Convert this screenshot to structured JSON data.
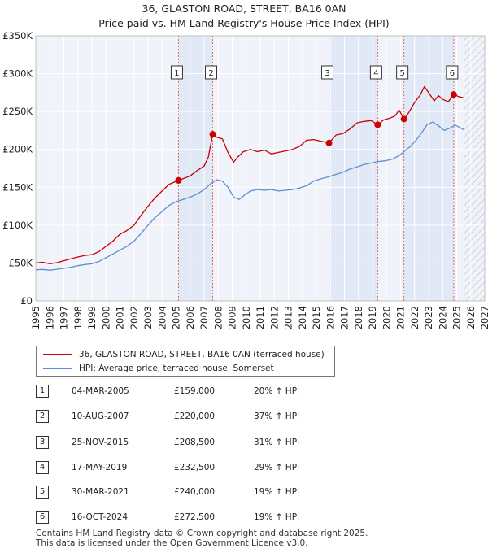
{
  "chart_data": {
    "type": "line",
    "title": "36, GLASTON ROAD, STREET, BA16 0AN",
    "subtitle": "Price paid vs. HM Land Registry's House Price Index (HPI)",
    "xlim": [
      1995,
      2027
    ],
    "ylim": [
      0,
      350000
    ],
    "x_ticks": [
      1995,
      1996,
      1997,
      1998,
      1999,
      2000,
      2001,
      2002,
      2003,
      2004,
      2005,
      2006,
      2007,
      2008,
      2009,
      2010,
      2011,
      2012,
      2013,
      2014,
      2015,
      2016,
      2017,
      2018,
      2019,
      2020,
      2021,
      2022,
      2023,
      2024,
      2025,
      2026,
      2027
    ],
    "y_ticks": [
      {
        "value": 0,
        "label": "£0"
      },
      {
        "value": 50000,
        "label": "£50K"
      },
      {
        "value": 100000,
        "label": "£100K"
      },
      {
        "value": 150000,
        "label": "£150K"
      },
      {
        "value": 200000,
        "label": "£200K"
      },
      {
        "value": 250000,
        "label": "£250K"
      },
      {
        "value": 300000,
        "label": "£300K"
      },
      {
        "value": 350000,
        "label": "£350K"
      }
    ],
    "grid": true,
    "future_shading_from": 2025.5,
    "series": [
      {
        "name": "36, GLASTON ROAD, STREET, BA16 0AN (terraced house)",
        "color": "#cc0000",
        "x": [
          1995,
          1995.5,
          1996,
          1996.5,
          1997,
          1997.5,
          1998,
          1998.5,
          1999,
          1999.5,
          2000,
          2000.5,
          2001,
          2001.5,
          2002,
          2002.5,
          2003,
          2003.5,
          2004,
          2004.5,
          2005.17,
          2005.6,
          2006,
          2006.5,
          2007,
          2007.3,
          2007.61,
          2007.9,
          2008.3,
          2008.7,
          2009.1,
          2009.4,
          2009.8,
          2010.3,
          2010.8,
          2011.3,
          2011.8,
          2012.3,
          2012.8,
          2013.3,
          2013.8,
          2014.3,
          2014.8,
          2015.3,
          2015.9,
          2016.4,
          2016.9,
          2017.4,
          2017.9,
          2018.4,
          2018.9,
          2019.37,
          2019.8,
          2020.2,
          2020.6,
          2020.9,
          2021.24,
          2021.6,
          2022,
          2022.4,
          2022.7,
          2023.0,
          2023.4,
          2023.7,
          2024.0,
          2024.4,
          2024.79,
          2025.1,
          2025.5
        ],
        "values": [
          50000,
          51000,
          49000,
          50500,
          53000,
          55500,
          58000,
          60000,
          61000,
          65000,
          72000,
          79000,
          88000,
          93000,
          100000,
          113000,
          125000,
          136000,
          145000,
          154000,
          159000,
          162000,
          165000,
          172000,
          178000,
          190000,
          220000,
          216000,
          214000,
          196000,
          183000,
          190000,
          197000,
          200000,
          197000,
          199000,
          194000,
          196000,
          198000,
          200000,
          204000,
          212000,
          213000,
          211000,
          208500,
          219000,
          221000,
          227000,
          235000,
          237000,
          238000,
          232500,
          239000,
          241000,
          244000,
          252000,
          240000,
          249000,
          262000,
          272000,
          283000,
          275000,
          264000,
          271000,
          266000,
          263000,
          272500,
          270000,
          268000
        ]
      },
      {
        "name": "HPI: Average price, terraced house, Somerset",
        "color": "#5b8fd0",
        "x": [
          1995,
          1995.5,
          1996,
          1996.5,
          1997,
          1997.5,
          1998,
          1998.5,
          1999,
          1999.5,
          2000,
          2000.5,
          2001,
          2001.5,
          2002,
          2002.5,
          2003,
          2003.5,
          2004,
          2004.5,
          2005,
          2005.5,
          2006,
          2006.5,
          2007,
          2007.5,
          2007.9,
          2008.3,
          2008.7,
          2009.1,
          2009.5,
          2009.9,
          2010.3,
          2010.8,
          2011.3,
          2011.8,
          2012.3,
          2012.8,
          2013.3,
          2013.8,
          2014.3,
          2014.8,
          2015.3,
          2015.9,
          2016.4,
          2016.9,
          2017.4,
          2017.9,
          2018.4,
          2018.9,
          2019.4,
          2019.9,
          2020.4,
          2020.9,
          2021.3,
          2021.7,
          2022.1,
          2022.5,
          2022.9,
          2023.3,
          2023.7,
          2024.1,
          2024.5,
          2024.9,
          2025.3,
          2025.5
        ],
        "values": [
          41000,
          41500,
          40500,
          41800,
          43000,
          44500,
          46500,
          48000,
          49000,
          52000,
          57000,
          62000,
          67000,
          72000,
          79000,
          89000,
          100000,
          110000,
          118000,
          126000,
          131000,
          134000,
          137000,
          141000,
          147000,
          155000,
          160000,
          158000,
          150000,
          137000,
          134000,
          140000,
          145000,
          147000,
          146000,
          147000,
          145000,
          146000,
          147000,
          149000,
          152000,
          158000,
          161000,
          164000,
          167000,
          170000,
          174000,
          177000,
          180000,
          182000,
          184000,
          185000,
          187000,
          192000,
          198000,
          204000,
          212000,
          222000,
          233000,
          236000,
          231000,
          225000,
          228000,
          232000,
          228000,
          226000
        ]
      }
    ],
    "markers": [
      {
        "label": "1",
        "x": 2005.17,
        "value": 159000
      },
      {
        "label": "2",
        "x": 2007.61,
        "value": 220000
      },
      {
        "label": "3",
        "x": 2015.9,
        "value": 208500
      },
      {
        "label": "4",
        "x": 2019.37,
        "value": 232500
      },
      {
        "label": "5",
        "x": 2021.24,
        "value": 240000
      },
      {
        "label": "6",
        "x": 2024.79,
        "value": 272500
      }
    ],
    "shaded_spans": [
      [
        2005.17,
        2007.61
      ],
      [
        2015.9,
        2019.37
      ],
      [
        2021.24,
        2024.79
      ]
    ]
  },
  "legend": {
    "property_label": "36, GLASTON ROAD, STREET, BA16 0AN (terraced house)",
    "hpi_label": "HPI: Average price, terraced house, Somerset",
    "property_color": "#cc0000",
    "hpi_color": "#5b8fd0"
  },
  "sales": [
    {
      "num": "1",
      "date": "04-MAR-2005",
      "price": "£159,000",
      "hpi": "20% ↑ HPI"
    },
    {
      "num": "2",
      "date": "10-AUG-2007",
      "price": "£220,000",
      "hpi": "37% ↑ HPI"
    },
    {
      "num": "3",
      "date": "25-NOV-2015",
      "price": "£208,500",
      "hpi": "31% ↑ HPI"
    },
    {
      "num": "4",
      "date": "17-MAY-2019",
      "price": "£232,500",
      "hpi": "29% ↑ HPI"
    },
    {
      "num": "5",
      "date": "30-MAR-2021",
      "price": "£240,000",
      "hpi": "19% ↑ HPI"
    },
    {
      "num": "6",
      "date": "16-OCT-2024",
      "price": "£272,500",
      "hpi": "19% ↑ HPI"
    }
  ],
  "footer": {
    "line1": "Contains HM Land Registry data © Crown copyright and database right 2025.",
    "line2": "This data is licensed under the Open Government Licence v3.0."
  }
}
